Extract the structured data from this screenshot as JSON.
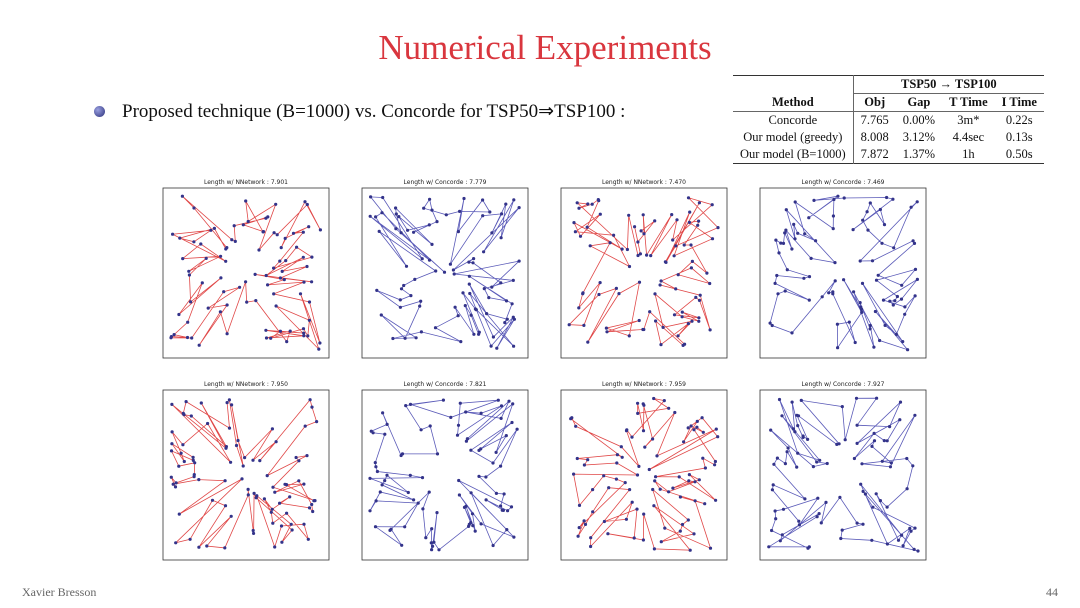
{
  "title": "Numerical Experiments",
  "bullet": "Proposed technique (B=1000) vs. Concorde for TSP50⇒TSP100 :",
  "table": {
    "group_header": "TSP50 → TSP100",
    "columns": [
      "Method",
      "Obj",
      "Gap",
      "T Time",
      "I Time"
    ],
    "rows": [
      [
        "Concorde",
        "7.765",
        "0.00%",
        "3m*",
        "0.22s"
      ],
      [
        "Our model (greedy)",
        "8.008",
        "3.12%",
        "4.4sec",
        "0.13s"
      ],
      [
        "Our model (B=1000)",
        "7.872",
        "1.37%",
        "1h",
        "0.50s"
      ]
    ]
  },
  "panels": [
    {
      "title": "Length w/ NNetwork : 7.901"
    },
    {
      "title": "Length w/ Concorde : 7.779"
    },
    {
      "title": "Length w/ NNetwork : 7.470"
    },
    {
      "title": "Length w/ Concorde : 7.469"
    },
    {
      "title": "Length w/ NNetwork : 7.950"
    },
    {
      "title": "Length w/ Concorde : 7.821"
    },
    {
      "title": "Length w/ NNetwork : 7.959"
    },
    {
      "title": "Length w/ Concorde : 7.927"
    }
  ],
  "footer": {
    "author": "Xavier Bresson",
    "page": "44"
  }
}
